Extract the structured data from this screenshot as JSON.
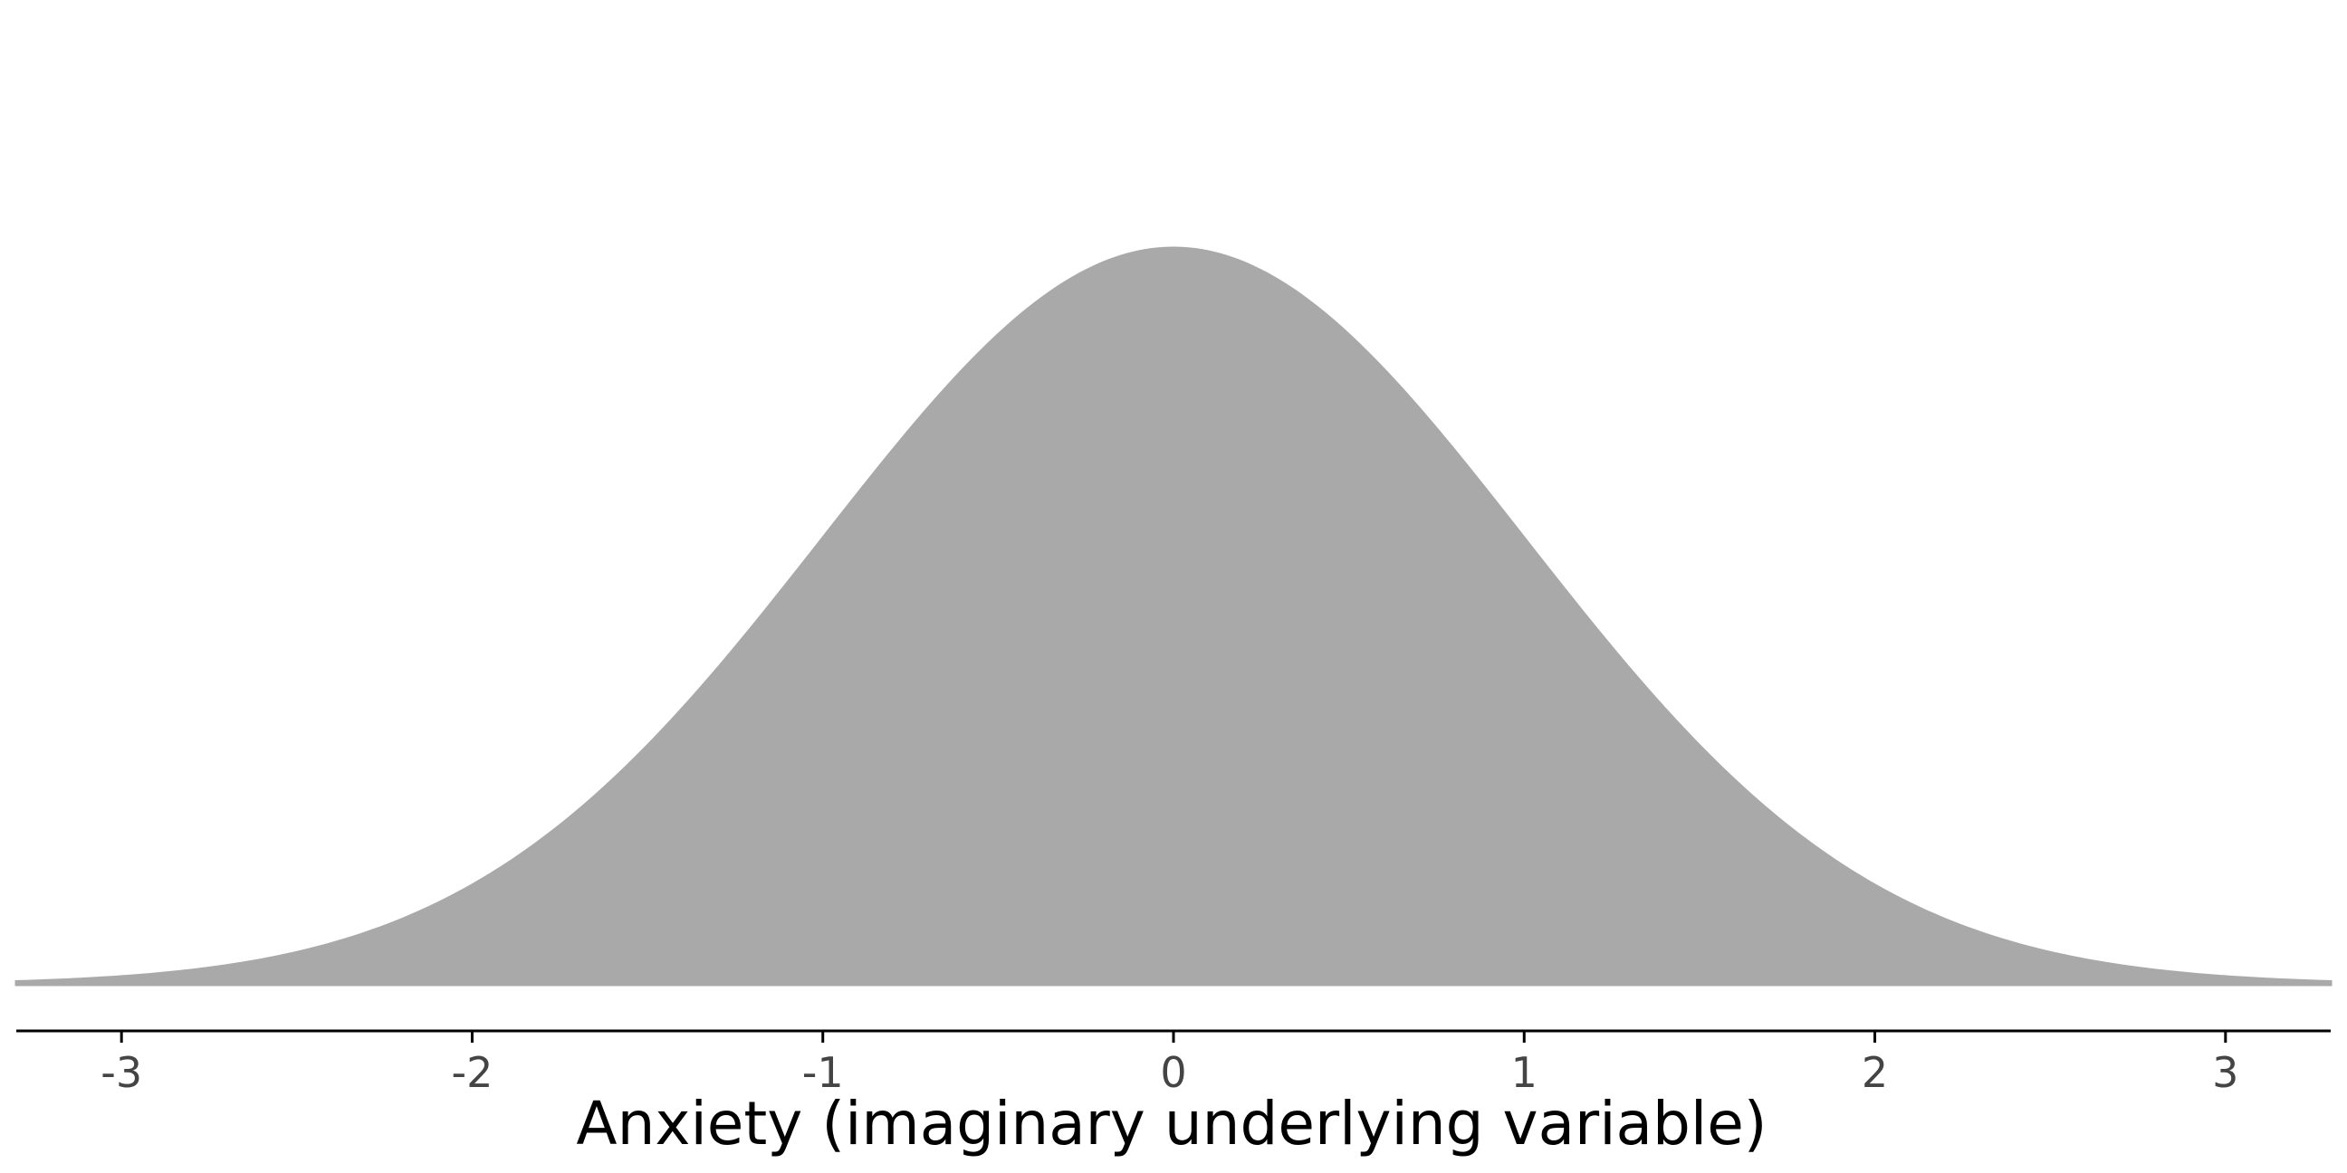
{
  "chart_data": {
    "type": "area",
    "title": "",
    "xlabel": "Anxiety (imaginary underlying variable)",
    "ylabel": "",
    "xlim": [
      -3.3,
      3.3
    ],
    "ylim": [
      0,
      0.5
    ],
    "x_ticks": [
      -3,
      -2,
      -1,
      0,
      1,
      2,
      3
    ],
    "x_tick_labels": [
      "-3",
      "-2",
      "-1",
      "0",
      "1",
      "2",
      "3"
    ],
    "y_axis_visible": false,
    "grid": false,
    "legend": "none",
    "fill_color": "#a8a9a8",
    "series": [
      {
        "distribution": "standard normal density",
        "mean": 0,
        "sd": 1,
        "x": [
          -3.3,
          -3.0,
          -2.75,
          -2.5,
          -2.25,
          -2.0,
          -1.75,
          -1.5,
          -1.25,
          -1.0,
          -0.75,
          -0.5,
          -0.25,
          0.0,
          0.25,
          0.5,
          0.75,
          1.0,
          1.25,
          1.5,
          1.75,
          2.0,
          2.25,
          2.5,
          2.75,
          3.0,
          3.3
        ],
        "y": [
          0.0017,
          0.0044,
          0.0091,
          0.0175,
          0.0317,
          0.054,
          0.0863,
          0.1295,
          0.1826,
          0.242,
          0.3011,
          0.3521,
          0.3867,
          0.3989,
          0.3867,
          0.3521,
          0.3011,
          0.242,
          0.1826,
          0.1295,
          0.0863,
          0.054,
          0.0317,
          0.0175,
          0.0091,
          0.0044,
          0.0017
        ]
      }
    ]
  }
}
